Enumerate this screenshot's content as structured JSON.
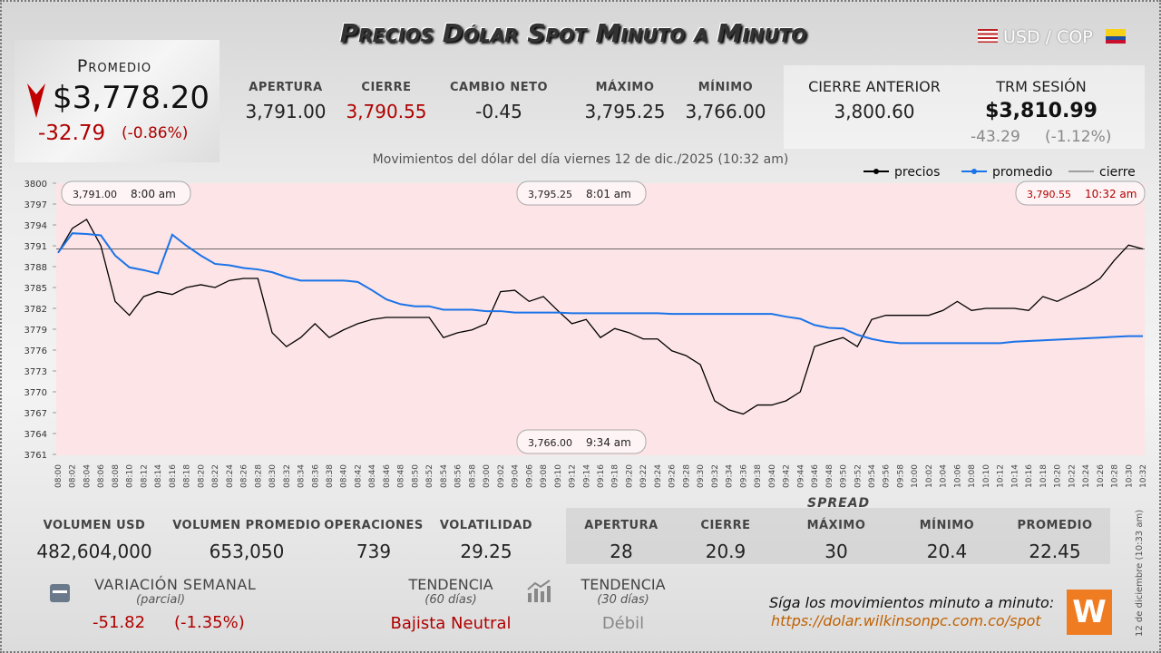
{
  "header": {
    "title": "Precios Dólar Spot Minuto a Minuto",
    "pair": "USD / COP"
  },
  "promedio": {
    "label": "Promedio",
    "value": "$3,778.20",
    "change": "-32.79",
    "change_pct": "(-0.86%)"
  },
  "top_stats": [
    {
      "label": "Apertura",
      "value": "3,791.00"
    },
    {
      "label": "Cierre",
      "value": "3,790.55"
    },
    {
      "label": "Cambio neto",
      "value": "-0.45"
    },
    {
      "label": "Máximo",
      "value": "3,795.25"
    },
    {
      "label": "Mínimo",
      "value": "3,766.00"
    }
  ],
  "previous": {
    "label": "Cierre anterior",
    "value": "3,800.60"
  },
  "trm": {
    "label": "TRM sesión",
    "value": "$3,810.99",
    "change": "-43.29",
    "change_pct": "(-1.12%)"
  },
  "volume_stats": [
    {
      "label": "Volumen USD",
      "value": "482,604,000"
    },
    {
      "label": "Volumen promedio",
      "value": "653,050"
    },
    {
      "label": "Operaciones",
      "value": "739"
    },
    {
      "label": "Volatilidad",
      "value": "29.25"
    }
  ],
  "spread": {
    "title": "SPREAD",
    "items": [
      {
        "label": "Apertura",
        "value": "28"
      },
      {
        "label": "Cierre",
        "value": "20.9"
      },
      {
        "label": "Máximo",
        "value": "30"
      },
      {
        "label": "Mínimo",
        "value": "20.4"
      },
      {
        "label": "Promedio",
        "value": "22.45"
      }
    ]
  },
  "weekly": {
    "label": "Variación semanal",
    "sub": "(parcial)",
    "change": "-51.82",
    "change_pct": "(-1.35%)"
  },
  "trend60": {
    "label": "Tendencia",
    "sub": "(60 días)",
    "value": "Bajista Neutral"
  },
  "trend30": {
    "label": "Tendencia",
    "sub": "(30 días)",
    "value": "Débil"
  },
  "footer": {
    "follow": "Síga los movimientos minuto a minuto:",
    "url": "https://dolar.wilkinsonpc.com.co/spot",
    "side_date": "12 de diciembre (10:33 am)"
  },
  "chart_data": {
    "type": "line",
    "title": "Movimientos del dólar del día viernes 12 de dic./2025 (10:32 am)",
    "categories": [
      "08:00",
      "08:02",
      "08:04",
      "08:06",
      "08:08",
      "08:10",
      "08:12",
      "08:14",
      "08:16",
      "08:18",
      "08:20",
      "08:22",
      "08:24",
      "08:26",
      "08:28",
      "08:30",
      "08:32",
      "08:34",
      "08:36",
      "08:38",
      "08:40",
      "08:42",
      "08:44",
      "08:46",
      "08:48",
      "08:50",
      "08:52",
      "08:54",
      "08:56",
      "08:58",
      "09:00",
      "09:02",
      "09:04",
      "09:06",
      "09:08",
      "09:10",
      "09:12",
      "09:14",
      "09:16",
      "09:18",
      "09:20",
      "09:22",
      "09:24",
      "09:26",
      "09:28",
      "09:30",
      "09:32",
      "09:34",
      "09:36",
      "09:38",
      "09:40",
      "09:42",
      "09:44",
      "09:46",
      "09:48",
      "09:50",
      "09:52",
      "09:54",
      "09:56",
      "09:58",
      "10:00",
      "10:02",
      "10:04",
      "10:06",
      "10:08",
      "10:10",
      "10:12",
      "10:14",
      "10:16",
      "10:18",
      "10:20",
      "10:22",
      "10:24",
      "10:26",
      "10:28",
      "10:30",
      "10:32"
    ],
    "series": [
      {
        "name": "precios",
        "color": "#000000",
        "values": [
          3790,
          3793.5,
          3794.8,
          3791,
          3783,
          3781,
          3783.7,
          3784.4,
          3784,
          3785,
          3785.4,
          3785,
          3786,
          3786.3,
          3786.3,
          3778.5,
          3776.5,
          3777.8,
          3779.8,
          3777.8,
          3778.9,
          3779.8,
          3780.4,
          3780.7,
          3780.7,
          3780.7,
          3780.7,
          3777.8,
          3778.5,
          3778.9,
          3779.8,
          3784.4,
          3784.6,
          3783,
          3783.7,
          3781.7,
          3779.8,
          3780.4,
          3777.8,
          3779.1,
          3778.5,
          3777.6,
          3777.6,
          3775.9,
          3775.2,
          3773.9,
          3768.7,
          3767.4,
          3766.8,
          3768.1,
          3768.1,
          3768.7,
          3770,
          3776.5,
          3777.2,
          3777.8,
          3776.5,
          3780.4,
          3781,
          3781,
          3781,
          3781,
          3781.7,
          3783,
          3781.7,
          3782,
          3782,
          3782,
          3781.7,
          3783.7,
          3783,
          3784,
          3785,
          3786.3,
          3788.9,
          3791.1,
          3790.55
        ]
      },
      {
        "name": "promedio",
        "color": "#1a73e8",
        "values": [
          3790,
          3792.8,
          3792.7,
          3792.5,
          3789.6,
          3787.9,
          3787.5,
          3787,
          3792.6,
          3791,
          3789.6,
          3788.4,
          3788.2,
          3787.8,
          3787.6,
          3787.2,
          3786.5,
          3786,
          3786,
          3786,
          3786,
          3785.8,
          3784.6,
          3783.3,
          3782.6,
          3782.3,
          3782.3,
          3781.8,
          3781.8,
          3781.8,
          3781.6,
          3781.6,
          3781.4,
          3781.4,
          3781.4,
          3781.4,
          3781.3,
          3781.3,
          3781.3,
          3781.3,
          3781.3,
          3781.3,
          3781.3,
          3781.2,
          3781.2,
          3781.2,
          3781.2,
          3781.2,
          3781.2,
          3781.2,
          3781.2,
          3780.8,
          3780.5,
          3779.6,
          3779.2,
          3779.1,
          3778.2,
          3777.6,
          3777.2,
          3777,
          3777,
          3777,
          3777,
          3777,
          3777,
          3777,
          3777,
          3777.2,
          3777.3,
          3777.4,
          3777.5,
          3777.6,
          3777.7,
          3777.8,
          3777.9,
          3778,
          3778
        ]
      }
    ],
    "cierre": {
      "name": "cierre",
      "color": "#555555",
      "value": 3790.55
    },
    "annotations": [
      {
        "label": "3,791.00",
        "time": "8:00 am"
      },
      {
        "label": "3,795.25",
        "time": "8:01 am"
      },
      {
        "label": "3,790.55",
        "time": "10:32 am"
      },
      {
        "label": "3,766.00",
        "time": "9:34 am"
      }
    ],
    "ylim": [
      3761,
      3800
    ],
    "yticks": [
      3761,
      3764,
      3767,
      3770,
      3773,
      3776,
      3779,
      3782,
      3785,
      3788,
      3791,
      3794,
      3797,
      3800
    ],
    "grid": false,
    "legend": "top-right"
  }
}
